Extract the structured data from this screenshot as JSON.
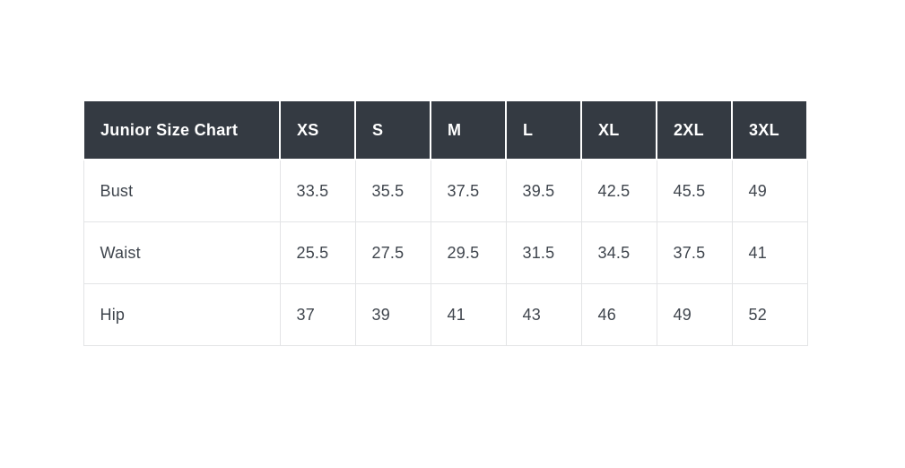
{
  "page": {
    "background_color": "#ffffff"
  },
  "size_chart": {
    "title": "Junior Size Chart",
    "columns": [
      "XS",
      "S",
      "M",
      "L",
      "XL",
      "2XL",
      "3XL"
    ],
    "rows": [
      {
        "label": "Bust",
        "values": [
          "33.5",
          "35.5",
          "37.5",
          "39.5",
          "42.5",
          "45.5",
          "49"
        ]
      },
      {
        "label": "Waist",
        "values": [
          "25.5",
          "27.5",
          "29.5",
          "31.5",
          "34.5",
          "37.5",
          "41"
        ]
      },
      {
        "label": "Hip",
        "values": [
          "37",
          "39",
          "41",
          "43",
          "46",
          "49",
          "52"
        ]
      }
    ],
    "colors": {
      "header_background": "#343a42",
      "header_text": "#ffffff",
      "body_text": "#3f454d",
      "grid_border": "#e3e4e6"
    }
  },
  "chart_data": {
    "type": "table",
    "title": "Junior Size Chart",
    "columns": [
      "Junior Size Chart",
      "XS",
      "S",
      "M",
      "L",
      "XL",
      "2XL",
      "3XL"
    ],
    "rows": [
      [
        "Bust",
        33.5,
        35.5,
        37.5,
        39.5,
        42.5,
        45.5,
        49
      ],
      [
        "Waist",
        25.5,
        27.5,
        29.5,
        31.5,
        34.5,
        37.5,
        41
      ],
      [
        "Hip",
        37,
        39,
        41,
        43,
        46,
        49,
        52
      ]
    ],
    "layout_hints": {
      "header_style": "dark-background-white-text",
      "body_style": "white-background-light-gray-grid",
      "alignment": "left"
    }
  }
}
